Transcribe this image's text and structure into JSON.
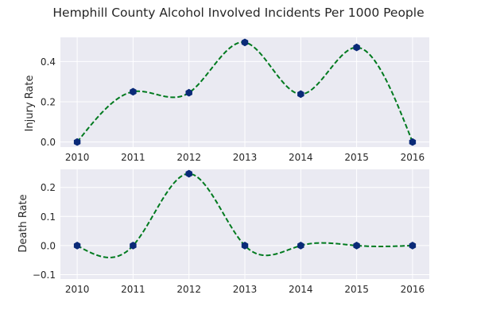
{
  "chart_data": [
    {
      "type": "line",
      "title": "Hemphill County Alcohol Involved Incidents Per 1000 People",
      "xlabel": "",
      "ylabel": "Injury Rate",
      "x": [
        2010,
        2011,
        2012,
        2013,
        2014,
        2015,
        2016
      ],
      "xticks": [
        "2010",
        "2011",
        "2012",
        "2013",
        "2014",
        "2015",
        "2016"
      ],
      "values": [
        0.0,
        0.25,
        0.245,
        0.495,
        0.238,
        0.47,
        0.0
      ],
      "yticks": [
        "0.0",
        "0.2",
        "0.4"
      ],
      "ytick_values": [
        0.0,
        0.2,
        0.4
      ],
      "xlim": [
        2009.7,
        2016.3
      ],
      "ylim": [
        -0.025,
        0.52
      ],
      "grid": true,
      "line_style": "dashed smooth curve",
      "line_color": "#007a1f",
      "marker_color": "#0a2a78",
      "marker": "hexagon",
      "background": "#eaeaf2"
    },
    {
      "type": "line",
      "xlabel": "",
      "ylabel": "Death Rate",
      "x": [
        2010,
        2011,
        2012,
        2013,
        2014,
        2015,
        2016
      ],
      "xticks": [
        "2010",
        "2011",
        "2012",
        "2013",
        "2014",
        "2015",
        "2016"
      ],
      "values": [
        0.0,
        0.0,
        0.247,
        0.0,
        0.0,
        0.0,
        0.0
      ],
      "yticks": [
        "−0.1",
        "0.0",
        "0.1",
        "0.2"
      ],
      "ytick_values": [
        -0.1,
        0.0,
        0.1,
        0.2
      ],
      "xlim": [
        2009.7,
        2016.3
      ],
      "ylim": [
        -0.115,
        0.262
      ],
      "grid": true,
      "line_style": "dashed smooth curve",
      "line_color": "#007a1f",
      "marker_color": "#0a2a78",
      "marker": "hexagon",
      "background": "#eaeaf2"
    }
  ]
}
